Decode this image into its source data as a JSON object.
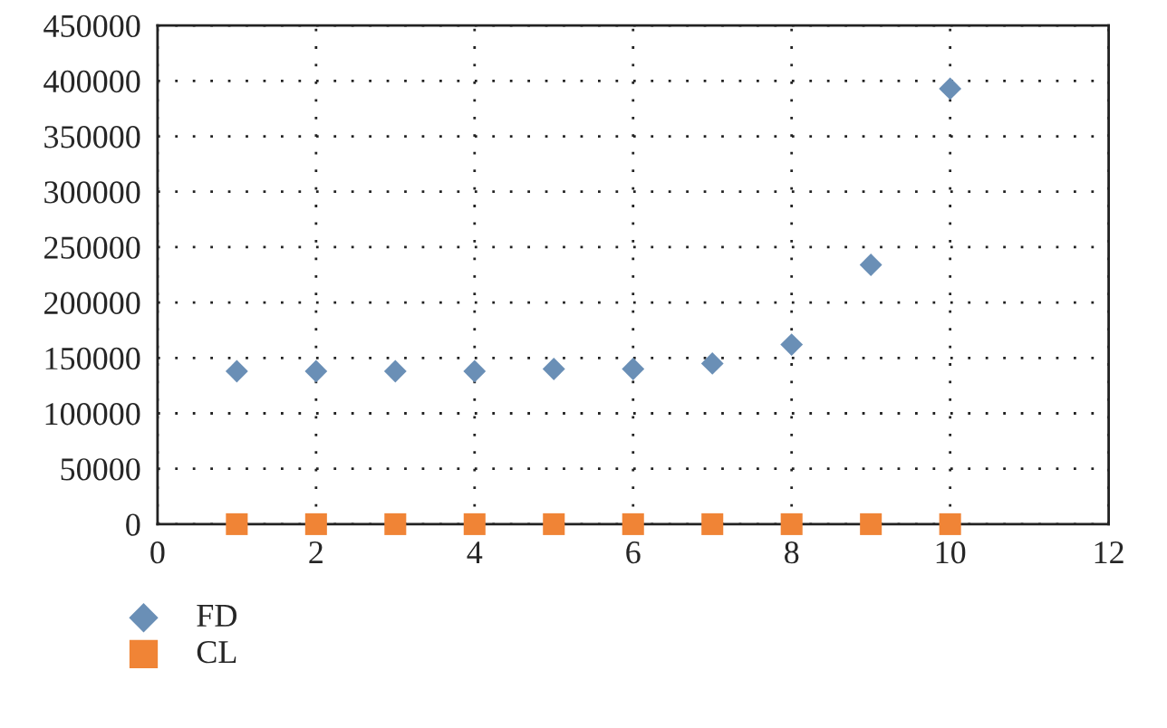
{
  "chart_data": {
    "type": "scatter",
    "x": [
      1,
      2,
      3,
      4,
      5,
      6,
      7,
      8,
      9,
      10
    ],
    "series": [
      {
        "name": "FD",
        "color": "#6a8fb6",
        "marker": "diamond",
        "values": [
          138000,
          138000,
          138000,
          138000,
          140000,
          140000,
          145000,
          162000,
          234000,
          393000
        ]
      },
      {
        "name": "CL",
        "color": "#f08436",
        "marker": "square",
        "values": [
          0,
          0,
          0,
          0,
          0,
          0,
          0,
          0,
          0,
          0
        ]
      }
    ],
    "xlim": [
      0,
      12
    ],
    "xticks": [
      0,
      2,
      4,
      6,
      8,
      10,
      12
    ],
    "ylim": [
      0,
      450000
    ],
    "yticks": [
      0,
      50000,
      100000,
      150000,
      200000,
      250000,
      300000,
      350000,
      400000,
      450000
    ],
    "grid": true,
    "legend": "bottom left"
  }
}
